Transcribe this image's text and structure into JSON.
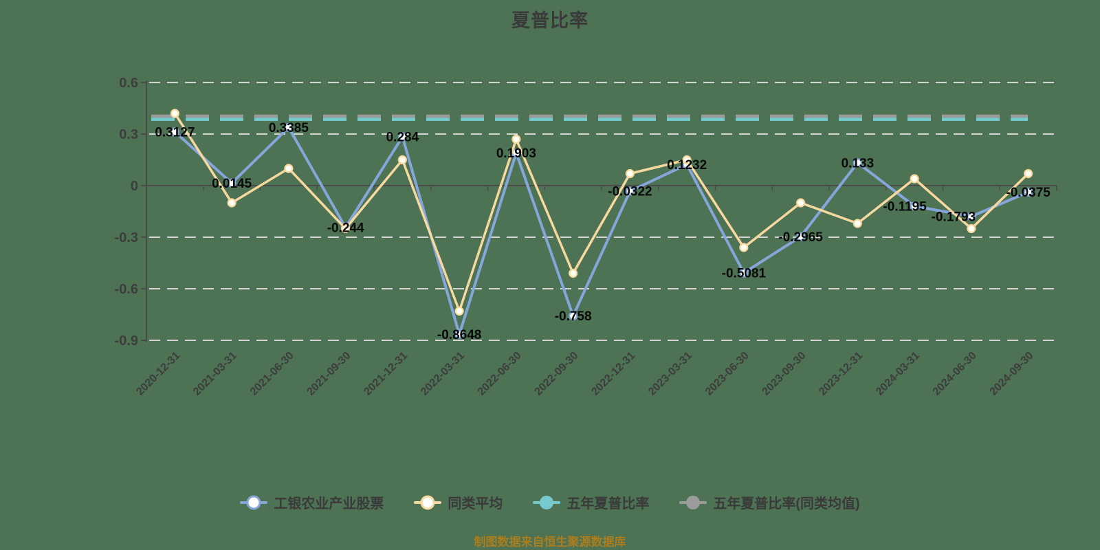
{
  "title": "夏普比率",
  "source_note": "制图数据来自恒生聚源数据库",
  "colors": {
    "background": "#4d7254",
    "grid": "#d6d6d6",
    "axis": "#4a4a4a",
    "text": "#3d3d3d",
    "point_label": "#0a0a0a",
    "source_text": "#aa7d1f",
    "fund_blue": "#85a6d9",
    "peer_yellow": "#f7d9a0",
    "five_year_teal": "#76cacd",
    "five_year_peer_gray": "#9b9b9b"
  },
  "legend": {
    "items": [
      {
        "label": "工银农业产业股票",
        "color": "#85a6d9",
        "marker": "hollow"
      },
      {
        "label": "同类平均",
        "color": "#f7d9a0",
        "marker": "hollow"
      },
      {
        "label": "五年夏普比率",
        "color": "#76cacd",
        "marker": "solid"
      },
      {
        "label": "五年夏普比率(同类均值)",
        "color": "#9b9b9b",
        "marker": "solid"
      }
    ]
  },
  "chart_data": {
    "type": "line",
    "title": "夏普比率",
    "categories": [
      "2020-12-31",
      "2021-03-31",
      "2021-06-30",
      "2021-09-30",
      "2021-12-31",
      "2022-03-31",
      "2022-06-30",
      "2022-09-30",
      "2022-12-31",
      "2023-03-31",
      "2023-06-30",
      "2023-09-30",
      "2023-12-31",
      "2024-03-31",
      "2024-06-30",
      "2024-09-30"
    ],
    "series": [
      {
        "name": "工银农业产业股票",
        "type": "line",
        "color": "#85a6d9",
        "values": [
          0.3127,
          0.0145,
          0.3385,
          -0.244,
          0.284,
          -0.8648,
          0.1903,
          -0.758,
          -0.0322,
          0.1232,
          -0.5081,
          -0.2965,
          0.133,
          -0.1195,
          -0.1793,
          -0.0375
        ]
      },
      {
        "name": "同类平均",
        "type": "line",
        "color": "#f7d9a0",
        "values": [
          0.42,
          -0.1,
          0.1,
          -0.25,
          0.15,
          -0.73,
          0.27,
          -0.51,
          0.07,
          0.15,
          -0.36,
          -0.1,
          -0.22,
          0.04,
          -0.25,
          0.07
        ]
      },
      {
        "name": "五年夏普比率",
        "type": "horizontal-dashed",
        "color": "#76cacd",
        "value": 0.39
      },
      {
        "name": "五年夏普比率(同类均值)",
        "type": "horizontal-dashed",
        "color": "#9b9b9b",
        "value": 0.4
      }
    ],
    "point_labels": [
      "0.3127",
      "0.0145",
      "0.3385",
      "-0.244",
      "0.284",
      "-0.8648",
      "0.1903",
      "-0.758",
      "-0.0322",
      "0.1232",
      "-0.5081",
      "-0.2965",
      "0.133",
      "-0.1195",
      "-0.1793",
      "-0.0375"
    ],
    "y_ticks": [
      "0.6",
      "0.3",
      "0",
      "-0.3",
      "-0.6",
      "-0.9"
    ],
    "ylim": [
      -0.9,
      0.6
    ],
    "grid": true,
    "grid_style": "white-dashed",
    "legend_position": "bottom"
  }
}
